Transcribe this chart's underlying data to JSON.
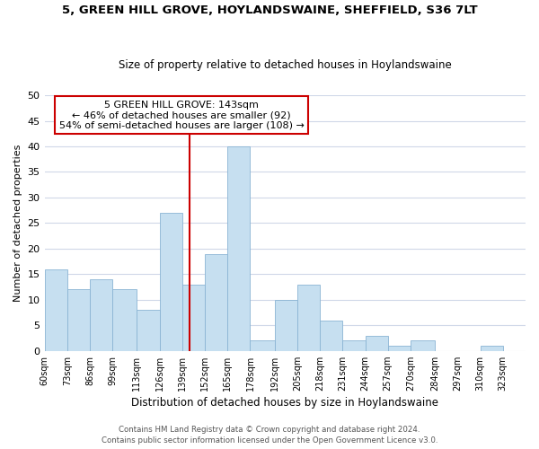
{
  "title1": "5, GREEN HILL GROVE, HOYLANDSWAINE, SHEFFIELD, S36 7LT",
  "title2": "Size of property relative to detached houses in Hoylandswaine",
  "xlabel": "Distribution of detached houses by size in Hoylandswaine",
  "ylabel": "Number of detached properties",
  "bin_labels": [
    "60sqm",
    "73sqm",
    "86sqm",
    "99sqm",
    "113sqm",
    "126sqm",
    "139sqm",
    "152sqm",
    "165sqm",
    "178sqm",
    "192sqm",
    "205sqm",
    "218sqm",
    "231sqm",
    "244sqm",
    "257sqm",
    "270sqm",
    "284sqm",
    "297sqm",
    "310sqm",
    "323sqm"
  ],
  "bar_heights": [
    16,
    12,
    14,
    12,
    8,
    27,
    13,
    19,
    40,
    2,
    10,
    13,
    6,
    2,
    3,
    1,
    2,
    0,
    0,
    1,
    0
  ],
  "bar_color": "#c6dff0",
  "bar_edge_color": "#8ab4d4",
  "reference_line_x": 143,
  "bin_edges": [
    60,
    73,
    86,
    99,
    113,
    126,
    139,
    152,
    165,
    178,
    192,
    205,
    218,
    231,
    244,
    257,
    270,
    284,
    297,
    310,
    323,
    336
  ],
  "annotation_title": "5 GREEN HILL GROVE: 143sqm",
  "annotation_line1": "← 46% of detached houses are smaller (92)",
  "annotation_line2": "54% of semi-detached houses are larger (108) →",
  "annotation_box_color": "#ffffff",
  "annotation_box_edge": "#cc0000",
  "vline_color": "#cc0000",
  "ylim": [
    0,
    50
  ],
  "yticks": [
    0,
    5,
    10,
    15,
    20,
    25,
    30,
    35,
    40,
    45,
    50
  ],
  "footer1": "Contains HM Land Registry data © Crown copyright and database right 2024.",
  "footer2": "Contains public sector information licensed under the Open Government Licence v3.0.",
  "bg_color": "#ffffff",
  "grid_color": "#d0d8e8"
}
